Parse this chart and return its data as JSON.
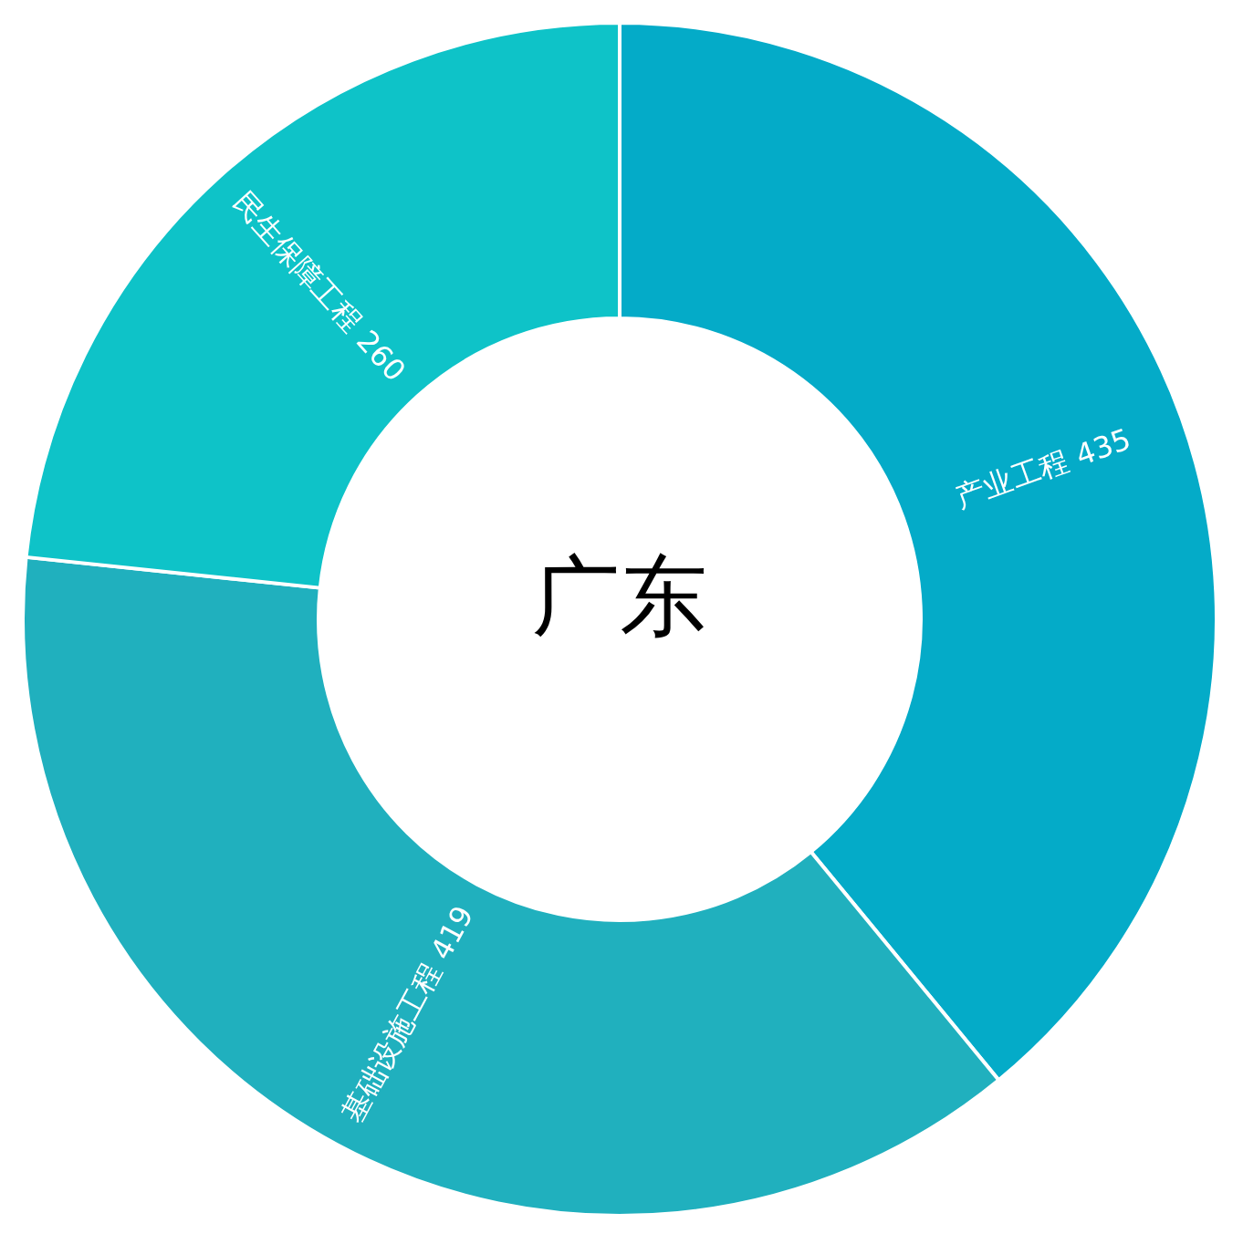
{
  "chart_data": {
    "type": "donut",
    "title": "广东",
    "categories": [
      "产业工程",
      "基础设施工程",
      "民生保障工程"
    ],
    "values": [
      435,
      419,
      260
    ],
    "colors": [
      "#04abc8",
      "#20b0be",
      "#0ec3c8"
    ],
    "data_labels": true
  }
}
